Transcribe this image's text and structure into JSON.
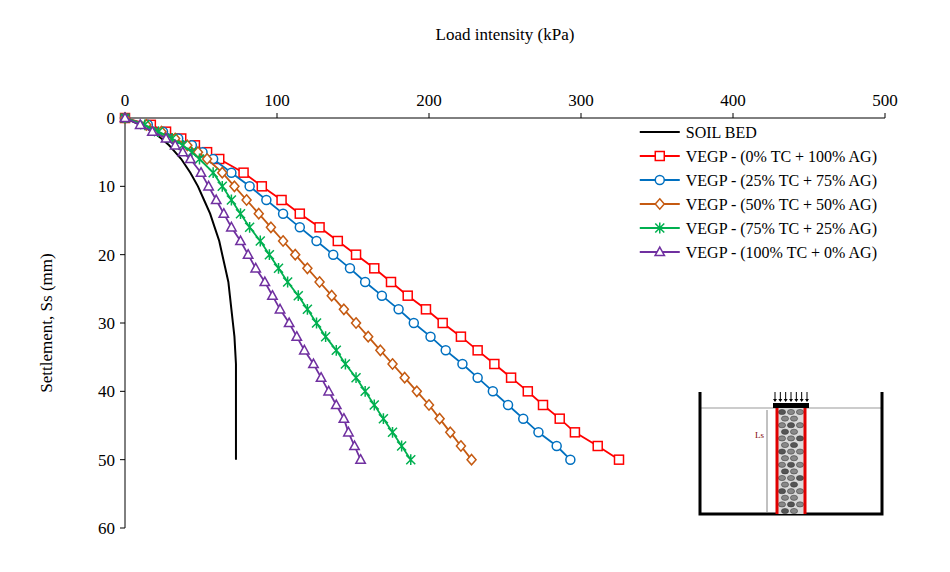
{
  "chart_data": {
    "type": "line",
    "xlabel": "Load intensity (kPa)",
    "ylabel": "Settlement, Ss (mm)",
    "xlim": [
      0,
      500
    ],
    "xticks": [
      0,
      100,
      200,
      300,
      400,
      500
    ],
    "ylim": [
      60,
      0
    ],
    "yticks": [
      0,
      10,
      20,
      30,
      40,
      50,
      60
    ],
    "grid": false,
    "legend": "upper right",
    "annotations": [
      "Ls"
    ],
    "series": [
      {
        "name": "SOIL BED",
        "color": "#000000",
        "marker": "none",
        "line_style": "solid",
        "x": [
          0,
          10,
          18,
          24,
          29,
          33,
          37,
          43,
          48,
          52,
          56,
          59,
          62,
          64,
          66,
          68,
          69,
          70,
          71,
          72,
          72.5,
          73,
          73,
          73,
          73,
          73,
          73,
          73,
          73
        ],
        "values": [
          0,
          1,
          2,
          3,
          4,
          5,
          6,
          8,
          10,
          12,
          14,
          16,
          18,
          20,
          22,
          24,
          26,
          28,
          30,
          32,
          34,
          36,
          38,
          40,
          42,
          44,
          46,
          48,
          50
        ]
      },
      {
        "name": "VEGP - (0% TC + 100% AG)",
        "color": "#ff0000",
        "marker": "square",
        "line_style": "solid",
        "x": [
          0,
          17,
          27,
          37,
          46,
          54,
          62,
          78,
          90,
          103,
          115,
          128,
          140,
          152,
          164,
          175,
          186,
          198,
          209,
          221,
          232,
          243,
          254,
          265,
          275,
          286,
          296,
          311,
          325
        ],
        "values": [
          0,
          1,
          2,
          3,
          4,
          5,
          6,
          8,
          10,
          12,
          14,
          16,
          18,
          20,
          22,
          24,
          26,
          28,
          30,
          32,
          34,
          36,
          38,
          40,
          42,
          44,
          46,
          48,
          50
        ]
      },
      {
        "name": "VEGP - (25% TC + 75% AG)",
        "color": "#0070c0",
        "marker": "circle",
        "line_style": "solid",
        "x": [
          0,
          15,
          25,
          35,
          44,
          51,
          58,
          70,
          82,
          93,
          104,
          115,
          126,
          137,
          148,
          158,
          169,
          180,
          190,
          201,
          211,
          222,
          232,
          242,
          252,
          262,
          272,
          284,
          293
        ],
        "values": [
          0,
          1,
          2,
          3,
          4,
          5,
          6,
          8,
          10,
          12,
          14,
          16,
          18,
          20,
          22,
          24,
          26,
          28,
          30,
          32,
          34,
          36,
          38,
          40,
          42,
          44,
          46,
          48,
          50
        ]
      },
      {
        "name": "VEGP - (50% TC + 50% AG)",
        "color": "#c55a11",
        "marker": "diamond",
        "line_style": "solid",
        "x": [
          0,
          14,
          24,
          33,
          41,
          48,
          54,
          64,
          72,
          80,
          88,
          96,
          104,
          112,
          120,
          128,
          136,
          144,
          152,
          160,
          168,
          176,
          184,
          192,
          200,
          207,
          214,
          221,
          228
        ],
        "values": [
          0,
          1,
          2,
          3,
          4,
          5,
          6,
          8,
          10,
          12,
          14,
          16,
          18,
          20,
          22,
          24,
          26,
          28,
          30,
          32,
          34,
          36,
          38,
          40,
          42,
          44,
          46,
          48,
          50
        ]
      },
      {
        "name": "VEGP - (75% TC + 25% AG)",
        "color": "#00b050",
        "marker": "star",
        "line_style": "solid",
        "x": [
          0,
          13,
          22,
          31,
          38,
          44,
          49,
          58,
          64,
          70,
          76,
          82,
          89,
          95,
          101,
          107,
          114,
          120,
          126,
          132,
          139,
          145,
          152,
          158,
          164,
          170,
          176,
          182,
          188
        ],
        "values": [
          0,
          1,
          2,
          3,
          4,
          5,
          6,
          8,
          10,
          12,
          14,
          16,
          18,
          20,
          22,
          24,
          26,
          28,
          30,
          32,
          34,
          36,
          38,
          40,
          42,
          44,
          46,
          48,
          50
        ]
      },
      {
        "name": "VEGP - (100% TC + 0% AG)",
        "color": "#7030a0",
        "marker": "triangle",
        "line_style": "solid",
        "x": [
          0,
          10,
          18,
          27,
          33,
          38,
          43,
          50,
          55,
          60,
          65,
          70,
          76,
          81,
          86,
          92,
          97,
          102,
          108,
          113,
          118,
          124,
          129,
          134,
          139,
          144,
          147,
          151,
          155
        ],
        "values": [
          0,
          1,
          2,
          3,
          4,
          5,
          6,
          8,
          10,
          12,
          14,
          16,
          18,
          20,
          22,
          24,
          26,
          28,
          30,
          32,
          34,
          36,
          38,
          40,
          42,
          44,
          46,
          48,
          50
        ]
      }
    ]
  }
}
